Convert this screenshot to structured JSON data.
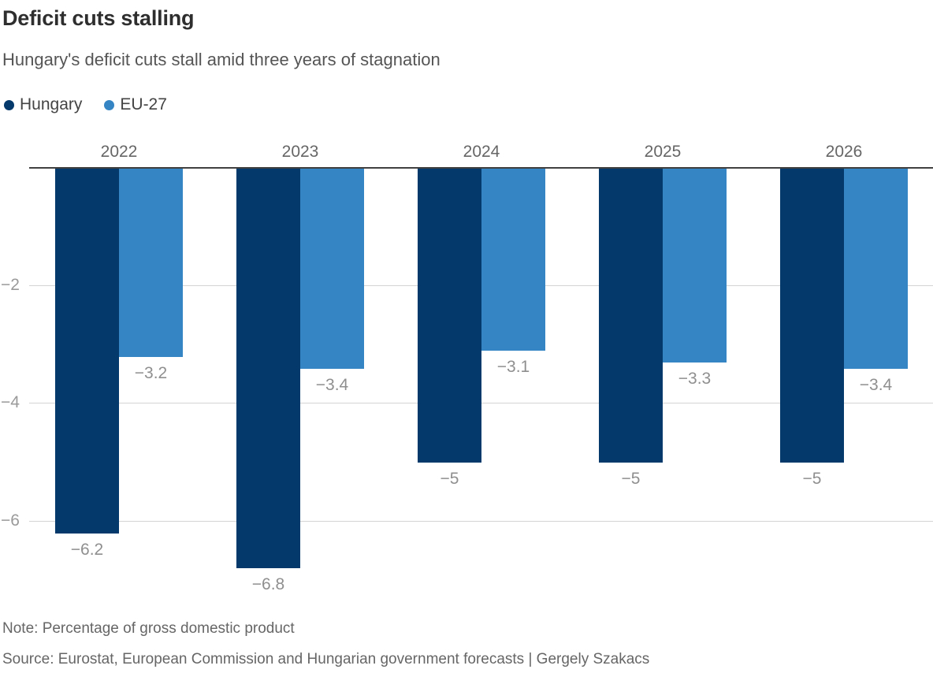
{
  "header": {
    "title": "Deficit cuts stalling",
    "subtitle": "Hungary's deficit cuts stall amid three years of stagnation"
  },
  "chart_data": {
    "type": "bar",
    "title": "Deficit cuts stalling",
    "subtitle": "Hungary's deficit cuts stall amid three years of stagnation",
    "categories": [
      "2022",
      "2023",
      "2024",
      "2025",
      "2026"
    ],
    "series": [
      {
        "name": "Hungary",
        "color": "#04396b",
        "values": [
          -6.2,
          -6.8,
          -5,
          -5,
          -5
        ],
        "labels": [
          "−6.2",
          "−6.8",
          "−5",
          "−5",
          "−5"
        ]
      },
      {
        "name": "EU-27",
        "color": "#3585c4",
        "values": [
          -3.2,
          -3.4,
          -3.1,
          -3.3,
          -3.4
        ],
        "labels": [
          "−3.2",
          "−3.4",
          "−3.1",
          "−3.3",
          "−3.4"
        ]
      }
    ],
    "yticks": [
      {
        "value": -2,
        "label": "−2"
      },
      {
        "value": -4,
        "label": "−4"
      },
      {
        "value": -6,
        "label": "−6"
      }
    ],
    "ylim": [
      -7.3,
      0
    ],
    "xlabel": "",
    "ylabel": "Percentage of gross domestic product",
    "grid": true,
    "legend_position": "top-left",
    "axis_color": "#404040",
    "gridline_color": "#d4d4d4",
    "label_color": "#8f8f8f"
  },
  "footer": {
    "note": "Note: Percentage of gross domestic product",
    "source": "Source: Eurostat, European Commission and Hungarian government forecasts | Gergely Szakacs"
  }
}
